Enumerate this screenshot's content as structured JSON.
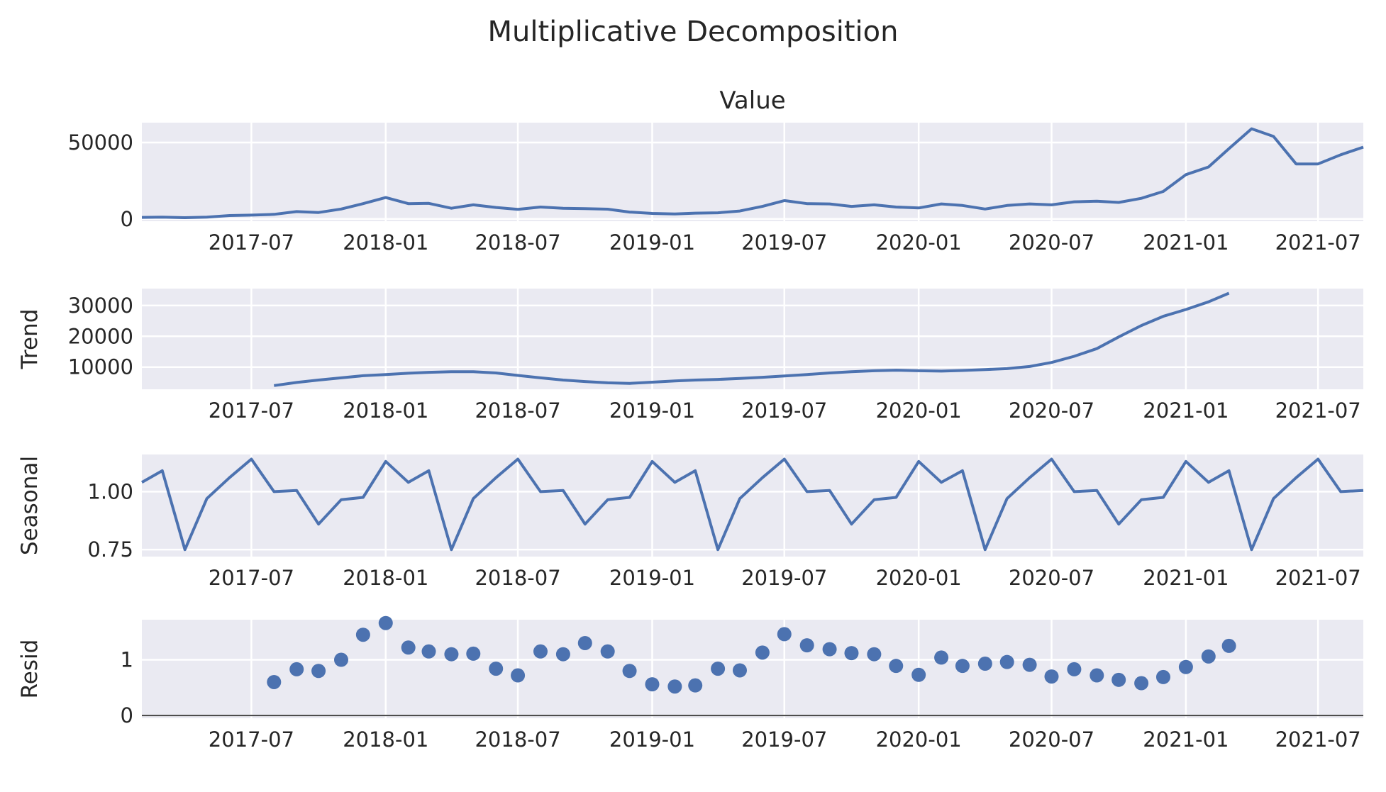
{
  "figure": {
    "title": "Multiplicative Decomposition"
  },
  "x_ticks": [
    "2017-07",
    "2018-01",
    "2018-07",
    "2019-01",
    "2019-07",
    "2020-01",
    "2020-07",
    "2021-01",
    "2021-07"
  ],
  "colors": {
    "line": "#4c72b0",
    "axes_bg": "#eaeaf2",
    "grid": "#ffffff",
    "text": "#262626"
  },
  "chart_data": [
    {
      "type": "line",
      "panel": "observed",
      "title": "Value",
      "ylabel": "",
      "x": [
        "2017-02",
        "2017-03",
        "2017-04",
        "2017-05",
        "2017-06",
        "2017-07",
        "2017-08",
        "2017-09",
        "2017-10",
        "2017-11",
        "2017-12",
        "2018-01",
        "2018-02",
        "2018-03",
        "2018-04",
        "2018-05",
        "2018-06",
        "2018-07",
        "2018-08",
        "2018-09",
        "2018-10",
        "2018-11",
        "2018-12",
        "2019-01",
        "2019-02",
        "2019-03",
        "2019-04",
        "2019-05",
        "2019-06",
        "2019-07",
        "2019-08",
        "2019-09",
        "2019-10",
        "2019-11",
        "2019-12",
        "2020-01",
        "2020-02",
        "2020-03",
        "2020-04",
        "2020-05",
        "2020-06",
        "2020-07",
        "2020-08",
        "2020-09",
        "2020-10",
        "2020-11",
        "2020-12",
        "2021-01",
        "2021-02",
        "2021-03",
        "2021-04",
        "2021-05",
        "2021-06",
        "2021-07",
        "2021-08",
        "2021-09"
      ],
      "values": [
        1000,
        1200,
        800,
        1200,
        2200,
        2500,
        3000,
        4800,
        4200,
        6500,
        10000,
        14000,
        10000,
        10200,
        7000,
        9200,
        7500,
        6300,
        7800,
        7000,
        6700,
        6400,
        4500,
        3600,
        3300,
        3800,
        4000,
        5200,
        8200,
        12000,
        10000,
        9800,
        8200,
        9200,
        7800,
        7200,
        9800,
        8800,
        6500,
        8800,
        9800,
        9200,
        11200,
        11600,
        10800,
        13500,
        18000,
        29000,
        34000,
        46000,
        59000,
        54000,
        36000,
        36000,
        42000,
        47000
      ],
      "ylim": [
        -1500,
        63000
      ],
      "yticks": [
        {
          "v": 0,
          "label": "0"
        },
        {
          "v": 50000,
          "label": "50000"
        }
      ]
    },
    {
      "type": "line",
      "panel": "trend",
      "title": "",
      "ylabel": "Trend",
      "x": [
        "2017-08",
        "2017-09",
        "2017-10",
        "2017-11",
        "2017-12",
        "2018-01",
        "2018-02",
        "2018-03",
        "2018-04",
        "2018-05",
        "2018-06",
        "2018-07",
        "2018-08",
        "2018-09",
        "2018-10",
        "2018-11",
        "2018-12",
        "2019-01",
        "2019-02",
        "2019-03",
        "2019-04",
        "2019-05",
        "2019-06",
        "2019-07",
        "2019-08",
        "2019-09",
        "2019-10",
        "2019-11",
        "2019-12",
        "2020-01",
        "2020-02",
        "2020-03",
        "2020-04",
        "2020-05",
        "2020-06",
        "2020-07",
        "2020-08",
        "2020-09",
        "2020-10",
        "2020-11",
        "2020-12",
        "2021-01",
        "2021-02",
        "2021-03"
      ],
      "values": [
        4000,
        5000,
        5800,
        6500,
        7200,
        7600,
        8000,
        8300,
        8500,
        8500,
        8100,
        7300,
        6500,
        5800,
        5300,
        4900,
        4700,
        5100,
        5500,
        5800,
        6000,
        6300,
        6700,
        7100,
        7600,
        8100,
        8500,
        8800,
        9000,
        8800,
        8700,
        8900,
        9200,
        9500,
        10200,
        11500,
        13500,
        16000,
        19800,
        23500,
        26500,
        28700,
        31200,
        34000
      ],
      "ylim": [
        2800,
        35500
      ],
      "yticks": [
        {
          "v": 10000,
          "label": "10000"
        },
        {
          "v": 20000,
          "label": "20000"
        },
        {
          "v": 30000,
          "label": "30000"
        }
      ]
    },
    {
      "type": "line",
      "panel": "seasonal",
      "title": "",
      "ylabel": "Seasonal",
      "x": [
        "2017-02",
        "2017-03",
        "2017-04",
        "2017-05",
        "2017-06",
        "2017-07",
        "2017-08",
        "2017-09",
        "2017-10",
        "2017-11",
        "2017-12",
        "2018-01",
        "2018-02",
        "2018-03",
        "2018-04",
        "2018-05",
        "2018-06",
        "2018-07",
        "2018-08",
        "2018-09",
        "2018-10",
        "2018-11",
        "2018-12",
        "2019-01",
        "2019-02",
        "2019-03",
        "2019-04",
        "2019-05",
        "2019-06",
        "2019-07",
        "2019-08",
        "2019-09",
        "2019-10",
        "2019-11",
        "2019-12",
        "2020-01",
        "2020-02",
        "2020-03",
        "2020-04",
        "2020-05",
        "2020-06",
        "2020-07",
        "2020-08",
        "2020-09",
        "2020-10",
        "2020-11",
        "2020-12",
        "2021-01",
        "2021-02",
        "2021-03",
        "2021-04",
        "2021-05",
        "2021-06",
        "2021-07",
        "2021-08",
        "2021-09"
      ],
      "values": [
        1.04,
        1.09,
        0.75,
        0.97,
        1.06,
        1.14,
        1.0,
        1.005,
        0.86,
        0.965,
        0.975,
        1.13,
        1.04,
        1.09,
        0.75,
        0.97,
        1.06,
        1.14,
        1.0,
        1.005,
        0.86,
        0.965,
        0.975,
        1.13,
        1.04,
        1.09,
        0.75,
        0.97,
        1.06,
        1.14,
        1.0,
        1.005,
        0.86,
        0.965,
        0.975,
        1.13,
        1.04,
        1.09,
        0.75,
        0.97,
        1.06,
        1.14,
        1.0,
        1.005,
        0.86,
        0.965,
        0.975,
        1.13,
        1.04,
        1.09,
        0.75,
        0.97,
        1.06,
        1.14,
        1.0,
        1.005
      ],
      "ylim": [
        0.72,
        1.16
      ],
      "yticks": [
        {
          "v": 0.75,
          "label": "0.75"
        },
        {
          "v": 1.0,
          "label": "1.00"
        }
      ]
    },
    {
      "type": "scatter",
      "panel": "resid",
      "title": "",
      "ylabel": "Resid",
      "x": [
        "2017-08",
        "2017-09",
        "2017-10",
        "2017-11",
        "2017-12",
        "2018-01",
        "2018-02",
        "2018-03",
        "2018-04",
        "2018-05",
        "2018-06",
        "2018-07",
        "2018-08",
        "2018-09",
        "2018-10",
        "2018-11",
        "2018-12",
        "2019-01",
        "2019-02",
        "2019-03",
        "2019-04",
        "2019-05",
        "2019-06",
        "2019-07",
        "2019-08",
        "2019-09",
        "2019-10",
        "2019-11",
        "2019-12",
        "2020-01",
        "2020-02",
        "2020-03",
        "2020-04",
        "2020-05",
        "2020-06",
        "2020-07",
        "2020-08",
        "2020-09",
        "2020-10",
        "2020-11",
        "2020-12",
        "2021-01",
        "2021-02",
        "2021-03"
      ],
      "values": [
        0.6,
        0.83,
        0.8,
        1.0,
        1.45,
        1.66,
        1.22,
        1.15,
        1.1,
        1.11,
        0.84,
        0.72,
        1.15,
        1.1,
        1.3,
        1.15,
        0.8,
        0.56,
        0.52,
        0.54,
        0.84,
        0.81,
        1.13,
        1.46,
        1.26,
        1.19,
        1.12,
        1.1,
        0.89,
        0.73,
        1.04,
        0.89,
        0.93,
        0.96,
        0.91,
        0.7,
        0.83,
        0.72,
        0.64,
        0.58,
        0.69,
        0.87,
        1.06,
        1.25
      ],
      "baseline": 0,
      "ylim": [
        -0.05,
        1.72
      ],
      "yticks": [
        {
          "v": 0,
          "label": "0"
        },
        {
          "v": 1,
          "label": "1"
        }
      ]
    }
  ]
}
